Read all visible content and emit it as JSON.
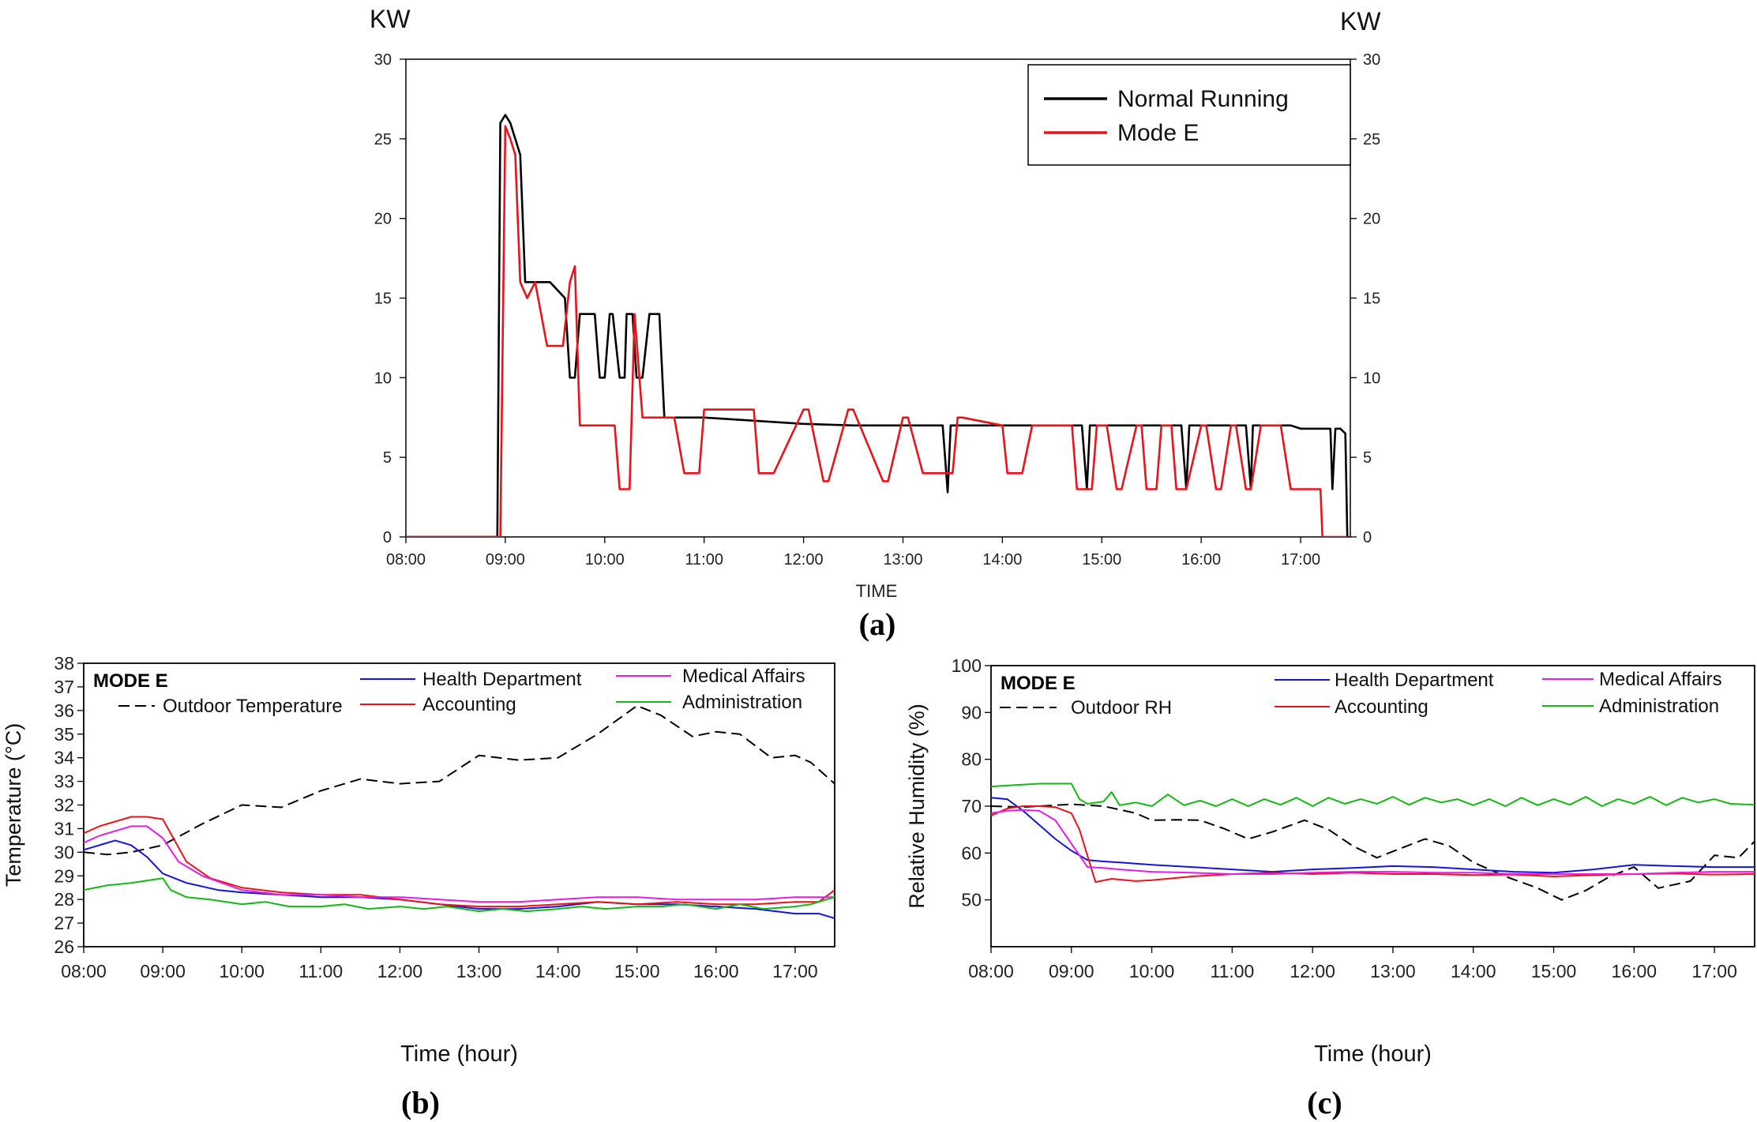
{
  "chart_data": [
    {
      "id": "a",
      "type": "line",
      "panel_label": "(a)",
      "xlabel": "TIME",
      "ylabel_left": "KW",
      "ylabel_right": "KW",
      "xlim": [
        8.0,
        17.5
      ],
      "ylim": [
        0,
        30
      ],
      "xticks": [
        "08:00",
        "09:00",
        "10:00",
        "11:00",
        "12:00",
        "13:00",
        "14:00",
        "15:00",
        "16:00",
        "17:00"
      ],
      "yticks": [
        "0",
        "5",
        "10",
        "15",
        "20",
        "25",
        "30"
      ],
      "legend": {
        "position": "top-right",
        "entries": [
          "Normal Running",
          "Mode E"
        ]
      },
      "series": [
        {
          "name": "Normal Running",
          "color": "#000000",
          "x": [
            8.0,
            8.92,
            8.95,
            9.0,
            9.05,
            9.1,
            9.15,
            9.2,
            9.3,
            9.45,
            9.6,
            9.65,
            9.7,
            9.75,
            9.82,
            9.9,
            9.95,
            10.0,
            10.05,
            10.08,
            10.15,
            10.2,
            10.22,
            10.28,
            10.32,
            10.38,
            10.45,
            10.5,
            10.55,
            10.6,
            11.0,
            11.5,
            12.0,
            12.5,
            13.0,
            13.4,
            13.45,
            13.48,
            13.52,
            14.0,
            14.3,
            14.5,
            14.8,
            14.85,
            14.88,
            14.92,
            15.2,
            15.5,
            15.8,
            15.85,
            15.88,
            15.92,
            16.2,
            16.45,
            16.5,
            16.52,
            16.55,
            16.9,
            17.0,
            17.2,
            17.3,
            17.32,
            17.35,
            17.4,
            17.45,
            17.47
          ],
          "y": [
            0,
            0,
            26,
            26.5,
            26,
            25,
            24,
            16,
            16,
            16,
            15,
            10,
            10,
            14,
            14,
            14,
            10,
            10,
            14,
            14,
            10,
            10,
            14,
            14,
            10,
            10,
            14,
            14,
            14,
            7.5,
            7.5,
            7.3,
            7.1,
            7.0,
            7.0,
            7.0,
            2.8,
            7.0,
            7.0,
            7.0,
            7.0,
            7.0,
            7.0,
            3,
            7.0,
            7.0,
            7.0,
            7.0,
            7.0,
            3,
            7.0,
            7.0,
            7.0,
            7.0,
            3,
            7.0,
            7.0,
            7.0,
            6.8,
            6.8,
            6.8,
            3,
            6.8,
            6.8,
            6.5,
            0
          ]
        },
        {
          "name": "Mode E",
          "color": "#e8141b",
          "x": [
            8.0,
            8.95,
            9.0,
            9.05,
            9.1,
            9.15,
            9.22,
            9.3,
            9.42,
            9.5,
            9.58,
            9.65,
            9.7,
            9.75,
            9.85,
            10.0,
            10.1,
            10.15,
            10.25,
            10.3,
            10.38,
            10.45,
            10.55,
            10.7,
            10.8,
            10.95,
            11.0,
            11.5,
            11.55,
            11.7,
            12.0,
            12.05,
            12.2,
            12.25,
            12.45,
            12.5,
            12.8,
            12.85,
            13.0,
            13.05,
            13.2,
            13.5,
            13.55,
            13.6,
            14.0,
            14.05,
            14.2,
            14.3,
            14.35,
            14.5,
            14.7,
            14.75,
            14.9,
            14.95,
            15.05,
            15.15,
            15.2,
            15.35,
            15.4,
            15.45,
            15.55,
            15.6,
            15.7,
            15.75,
            15.85,
            16.0,
            16.05,
            16.15,
            16.2,
            16.3,
            16.35,
            16.45,
            16.5,
            16.6,
            16.7,
            16.8,
            16.9,
            17.0,
            17.2,
            17.22,
            17.47
          ],
          "y": [
            0,
            0,
            25.8,
            25,
            24,
            16,
            15,
            16,
            12,
            12,
            12,
            16,
            17,
            7.0,
            7.0,
            7.0,
            7.0,
            3,
            3,
            14,
            7.5,
            7.5,
            7.5,
            7.5,
            4,
            4,
            8.0,
            8.0,
            4,
            4,
            8.0,
            8.0,
            3.5,
            3.5,
            8.0,
            8.0,
            3.5,
            3.5,
            7.5,
            7.5,
            4,
            4,
            7.5,
            7.5,
            7.0,
            4,
            4,
            7.0,
            7.0,
            7.0,
            7.0,
            3,
            3,
            7.0,
            7.0,
            3,
            3,
            7.0,
            7.0,
            3,
            3,
            7.0,
            7.0,
            3,
            3,
            7.0,
            7.0,
            3,
            3,
            7.0,
            7.0,
            3,
            3,
            7.0,
            7.0,
            7.0,
            3,
            3,
            3,
            0,
            0
          ]
        }
      ]
    },
    {
      "id": "b",
      "type": "line",
      "panel_label": "(b)",
      "annotation": "MODE E",
      "xlabel": "Time (hour)",
      "ylabel": "Temperature (°C)",
      "xlim": [
        8.0,
        17.5
      ],
      "ylim": [
        26,
        38
      ],
      "xticks": [
        "08:00",
        "09:00",
        "10:00",
        "11:00",
        "12:00",
        "13:00",
        "14:00",
        "15:00",
        "16:00",
        "17:00"
      ],
      "yticks": [
        "26",
        "27",
        "28",
        "29",
        "30",
        "31",
        "32",
        "33",
        "34",
        "35",
        "36",
        "37",
        "38"
      ],
      "legend": {
        "position": "top",
        "entries": [
          "Outdoor Temperature",
          "Health Department",
          "Accounting",
          "Medical Affairs",
          "Administration"
        ]
      },
      "series": [
        {
          "name": "Outdoor Temperature",
          "color": "#000000",
          "dashed": true,
          "x": [
            8.0,
            8.3,
            8.6,
            9.0,
            9.5,
            10.0,
            10.5,
            11.0,
            11.5,
            12.0,
            12.5,
            13.0,
            13.5,
            14.0,
            14.5,
            15.0,
            15.3,
            15.7,
            16.0,
            16.3,
            16.7,
            17.0,
            17.2,
            17.5
          ],
          "y": [
            30.0,
            29.9,
            30.0,
            30.3,
            31.2,
            32.0,
            31.9,
            32.6,
            33.1,
            32.9,
            33.0,
            34.1,
            33.9,
            34.0,
            35.0,
            36.2,
            35.8,
            34.9,
            35.1,
            35.0,
            34.0,
            34.1,
            33.8,
            32.9
          ]
        },
        {
          "name": "Health Department",
          "color": "#1515d8",
          "x": [
            8.0,
            8.2,
            8.4,
            8.6,
            8.8,
            9.0,
            9.3,
            9.7,
            10.0,
            10.5,
            11.0,
            11.5,
            12.0,
            12.5,
            13.0,
            13.5,
            14.0,
            14.5,
            15.0,
            15.5,
            16.0,
            16.5,
            17.0,
            17.3,
            17.5
          ],
          "y": [
            30.1,
            30.3,
            30.5,
            30.3,
            29.8,
            29.1,
            28.7,
            28.4,
            28.3,
            28.2,
            28.1,
            28.1,
            28.0,
            27.8,
            27.6,
            27.6,
            27.7,
            27.9,
            27.8,
            27.8,
            27.7,
            27.6,
            27.4,
            27.4,
            27.2
          ]
        },
        {
          "name": "Accounting",
          "color": "#e8141b",
          "x": [
            8.0,
            8.2,
            8.4,
            8.6,
            8.8,
            9.0,
            9.1,
            9.3,
            9.6,
            10.0,
            10.5,
            11.0,
            11.5,
            12.0,
            12.5,
            13.0,
            13.5,
            14.0,
            14.5,
            15.0,
            15.5,
            16.0,
            16.5,
            17.0,
            17.3,
            17.5
          ],
          "y": [
            30.8,
            31.1,
            31.3,
            31.5,
            31.5,
            31.4,
            30.8,
            29.6,
            28.9,
            28.5,
            28.3,
            28.2,
            28.2,
            28.0,
            27.8,
            27.7,
            27.7,
            27.8,
            27.9,
            27.8,
            27.9,
            27.8,
            27.8,
            27.9,
            27.9,
            28.4
          ]
        },
        {
          "name": "Medical Affairs",
          "color": "#e51ee5",
          "x": [
            8.0,
            8.2,
            8.4,
            8.6,
            8.8,
            9.0,
            9.2,
            9.5,
            10.0,
            10.5,
            11.0,
            11.5,
            12.0,
            12.5,
            13.0,
            13.5,
            14.0,
            14.5,
            15.0,
            15.5,
            16.0,
            16.5,
            17.0,
            17.5
          ],
          "y": [
            30.4,
            30.7,
            30.9,
            31.1,
            31.1,
            30.6,
            29.6,
            29.0,
            28.4,
            28.2,
            28.2,
            28.1,
            28.1,
            28.0,
            27.9,
            27.9,
            28.0,
            28.1,
            28.1,
            28.0,
            28.0,
            28.0,
            28.1,
            28.1
          ]
        },
        {
          "name": "Administration",
          "color": "#14b814",
          "x": [
            8.0,
            8.3,
            8.6,
            9.0,
            9.1,
            9.3,
            9.6,
            10.0,
            10.3,
            10.6,
            11.0,
            11.3,
            11.6,
            12.0,
            12.3,
            12.6,
            13.0,
            13.3,
            13.6,
            14.0,
            14.3,
            14.6,
            15.0,
            15.3,
            15.6,
            16.0,
            16.3,
            16.6,
            17.0,
            17.2,
            17.5
          ],
          "y": [
            28.4,
            28.6,
            28.7,
            28.9,
            28.4,
            28.1,
            28.0,
            27.8,
            27.9,
            27.7,
            27.7,
            27.8,
            27.6,
            27.7,
            27.6,
            27.7,
            27.5,
            27.6,
            27.5,
            27.6,
            27.7,
            27.6,
            27.7,
            27.7,
            27.8,
            27.6,
            27.8,
            27.6,
            27.7,
            27.8,
            28.1
          ]
        }
      ]
    },
    {
      "id": "c",
      "type": "line",
      "panel_label": "(c)",
      "annotation": "MODE E",
      "xlabel": "Time (hour)",
      "ylabel": "Relative Humidity (%)",
      "xlim": [
        8.0,
        17.5
      ],
      "ylim": [
        40,
        100
      ],
      "xticks": [
        "08:00",
        "09:00",
        "10:00",
        "11:00",
        "12:00",
        "13:00",
        "14:00",
        "15:00",
        "16:00",
        "17:00"
      ],
      "yticks": [
        "50",
        "60",
        "70",
        "80",
        "90",
        "100"
      ],
      "legend": {
        "position": "top",
        "entries": [
          "Outdoor RH",
          "Health Department",
          "Accounting",
          "Medical Affairs",
          "Administration"
        ]
      },
      "series": [
        {
          "name": "Outdoor RH",
          "color": "#000000",
          "dashed": true,
          "x": [
            8.0,
            8.4,
            8.8,
            9.0,
            9.4,
            9.8,
            10.0,
            10.3,
            10.6,
            10.9,
            11.2,
            11.5,
            11.9,
            12.2,
            12.5,
            12.8,
            13.1,
            13.4,
            13.7,
            14.0,
            14.4,
            14.8,
            15.1,
            15.4,
            15.7,
            16.0,
            16.3,
            16.7,
            17.0,
            17.3,
            17.5
          ],
          "y": [
            70.0,
            69.8,
            70.2,
            70.4,
            70.0,
            68.5,
            67.0,
            67.1,
            67.0,
            65.2,
            63.0,
            64.5,
            67.0,
            65.0,
            61.5,
            59.0,
            61.0,
            63.0,
            61.5,
            58.0,
            55.0,
            52.5,
            50.0,
            52.0,
            55.0,
            57.0,
            52.5,
            54.0,
            59.5,
            59.0,
            62.5
          ]
        },
        {
          "name": "Health Department",
          "color": "#1515d8",
          "x": [
            8.0,
            8.2,
            8.4,
            8.6,
            8.8,
            9.0,
            9.2,
            9.4,
            9.6,
            10.0,
            10.5,
            11.0,
            11.5,
            12.0,
            12.5,
            13.0,
            13.5,
            14.0,
            14.5,
            15.0,
            15.5,
            16.0,
            16.5,
            17.0,
            17.5
          ],
          "y": [
            71.8,
            71.5,
            69.0,
            66.0,
            63.0,
            60.5,
            58.5,
            58.2,
            58.0,
            57.5,
            57.0,
            56.5,
            56.0,
            56.5,
            56.8,
            57.2,
            57.0,
            56.5,
            56.0,
            55.8,
            56.5,
            57.5,
            57.2,
            57.0,
            57.0
          ]
        },
        {
          "name": "Accounting",
          "color": "#e8141b",
          "x": [
            8.0,
            8.2,
            8.4,
            8.6,
            8.8,
            9.0,
            9.1,
            9.3,
            9.5,
            9.8,
            10.0,
            10.5,
            11.0,
            11.5,
            12.0,
            12.5,
            13.0,
            13.5,
            14.0,
            14.5,
            15.0,
            15.5,
            16.0,
            16.5,
            17.0,
            17.5
          ],
          "y": [
            68.0,
            69.5,
            70.0,
            70.0,
            69.8,
            68.5,
            65.0,
            53.8,
            54.5,
            54.0,
            54.2,
            55.0,
            55.5,
            55.8,
            55.5,
            55.8,
            55.5,
            55.5,
            55.3,
            55.4,
            55.0,
            55.3,
            55.5,
            55.6,
            55.4,
            55.5
          ]
        },
        {
          "name": "Medical Affairs",
          "color": "#e51ee5",
          "x": [
            8.0,
            8.2,
            8.4,
            8.6,
            8.8,
            9.0,
            9.2,
            9.4,
            9.6,
            10.0,
            10.5,
            11.0,
            11.5,
            12.0,
            12.5,
            13.0,
            13.5,
            14.0,
            14.5,
            15.0,
            15.5,
            16.0,
            16.5,
            17.0,
            17.5
          ],
          "y": [
            68.5,
            69.0,
            69.2,
            69.0,
            67.0,
            62.0,
            57.0,
            56.8,
            56.5,
            56.0,
            55.8,
            55.5,
            55.5,
            55.8,
            56.0,
            56.0,
            55.8,
            55.8,
            55.5,
            55.5,
            55.5,
            55.5,
            55.8,
            56.0,
            56.0
          ]
        },
        {
          "name": "Administration",
          "color": "#14b814",
          "x": [
            8.0,
            8.3,
            8.6,
            9.0,
            9.1,
            9.2,
            9.4,
            9.5,
            9.6,
            9.8,
            10.0,
            10.2,
            10.4,
            10.6,
            10.8,
            11.0,
            11.2,
            11.4,
            11.6,
            11.8,
            12.0,
            12.2,
            12.4,
            12.6,
            12.8,
            13.0,
            13.2,
            13.4,
            13.6,
            13.8,
            14.0,
            14.2,
            14.4,
            14.6,
            14.8,
            15.0,
            15.2,
            15.4,
            15.6,
            15.8,
            16.0,
            16.2,
            16.4,
            16.6,
            16.8,
            17.0,
            17.2,
            17.5
          ],
          "y": [
            74.2,
            74.5,
            74.8,
            74.8,
            71.5,
            70.5,
            71.0,
            73.0,
            70.2,
            70.8,
            70.0,
            72.5,
            70.2,
            71.2,
            70.0,
            71.5,
            70.0,
            71.5,
            70.3,
            71.8,
            70.0,
            71.8,
            70.5,
            71.5,
            70.5,
            72.0,
            70.3,
            71.8,
            70.8,
            71.5,
            70.2,
            71.5,
            70.0,
            71.8,
            70.2,
            71.5,
            70.3,
            72.0,
            70.0,
            71.5,
            70.5,
            72.0,
            70.2,
            71.8,
            70.8,
            71.5,
            70.5,
            70.3
          ]
        }
      ]
    }
  ]
}
